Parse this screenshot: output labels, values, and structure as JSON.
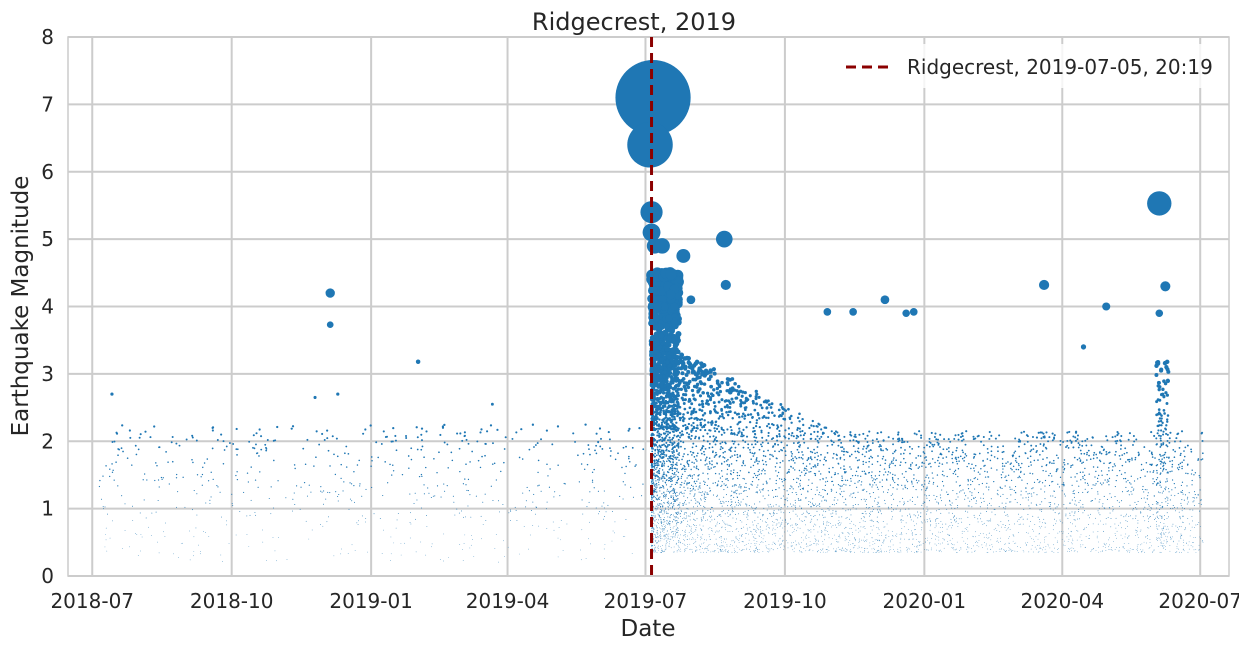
{
  "chart_data": {
    "type": "scatter",
    "title": "Ridgecrest, 2019",
    "xlabel": "Date",
    "ylabel": "Earthquake Magnitude",
    "ylim": [
      0,
      8
    ],
    "xlim": [
      "2018-06-15",
      "2020-07-20"
    ],
    "x_ticks": [
      "2018-07",
      "2018-10",
      "2019-01",
      "2019-04",
      "2019-07",
      "2019-10",
      "2020-01",
      "2020-04",
      "2020-07"
    ],
    "x_tick_dates": [
      "2018-07-01",
      "2018-10-01",
      "2019-01-01",
      "2019-04-01",
      "2019-07-01",
      "2019-10-01",
      "2020-01-01",
      "2020-04-01",
      "2020-07-01"
    ],
    "y_ticks": [
      "0",
      "1",
      "2",
      "3",
      "4",
      "5",
      "6",
      "7",
      "8"
    ],
    "grid": true,
    "legend_position": "top-right",
    "point_size_encodes": "magnitude",
    "colors": {
      "points": "#1f77b4",
      "event_line": "#8b0000",
      "grid": "#cccccc",
      "spine": "#cccccc"
    },
    "event_line": {
      "date": "2019-07-05",
      "label": "Ridgecrest, 2019-07-05, 20:19"
    },
    "highlighted_events": [
      {
        "date": "2019-07-06",
        "magnitude": 7.1
      },
      {
        "date": "2019-07-04",
        "magnitude": 6.4
      },
      {
        "date": "2019-07-05",
        "magnitude": 5.4
      },
      {
        "date": "2019-07-05",
        "magnitude": 5.1
      },
      {
        "date": "2019-07-07",
        "magnitude": 4.9
      },
      {
        "date": "2019-07-12",
        "magnitude": 4.9
      },
      {
        "date": "2019-08-22",
        "magnitude": 5.0
      },
      {
        "date": "2019-07-26",
        "magnitude": 4.75
      },
      {
        "date": "2019-07-18",
        "magnitude": 4.48
      },
      {
        "date": "2019-08-23",
        "magnitude": 4.32
      },
      {
        "date": "2019-07-31",
        "magnitude": 4.1
      },
      {
        "date": "2018-12-05",
        "magnitude": 4.2
      },
      {
        "date": "2018-12-05",
        "magnitude": 3.73
      },
      {
        "date": "2019-12-06",
        "magnitude": 4.1
      },
      {
        "date": "2019-11-15",
        "magnitude": 3.92
      },
      {
        "date": "2019-10-29",
        "magnitude": 3.92
      },
      {
        "date": "2019-12-20",
        "magnitude": 3.9
      },
      {
        "date": "2019-12-25",
        "magnitude": 3.92
      },
      {
        "date": "2020-03-20",
        "magnitude": 4.32
      },
      {
        "date": "2020-04-30",
        "magnitude": 4.0
      },
      {
        "date": "2020-06-04",
        "magnitude": 5.53
      },
      {
        "date": "2020-06-08",
        "magnitude": 4.3
      },
      {
        "date": "2020-06-04",
        "magnitude": 3.9
      },
      {
        "date": "2020-04-15",
        "magnitude": 3.4
      },
      {
        "date": "2019-02-01",
        "magnitude": 3.18
      },
      {
        "date": "2018-07-14",
        "magnitude": 2.7
      },
      {
        "date": "2018-12-10",
        "magnitude": 2.7
      },
      {
        "date": "2018-11-25",
        "magnitude": 2.65
      },
      {
        "date": "2019-03-22",
        "magnitude": 2.55
      }
    ]
  }
}
